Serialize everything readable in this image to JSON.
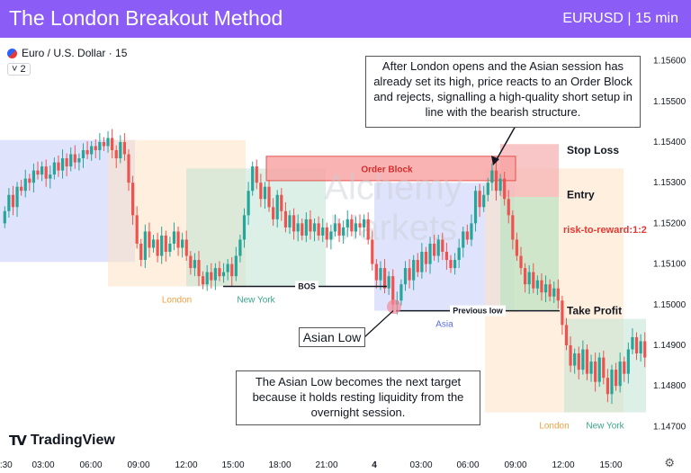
{
  "header": {
    "title": "The London Breakout Method",
    "symbol": "EURUSD | 15 min"
  },
  "legend": {
    "instrument": "Euro / U.S. Dollar · 15",
    "badge": "˅ 2"
  },
  "notes": {
    "top": "After London opens and the Asian session has already set its high, price reacts to an Order Block and rejects, signalling a high-quality short setup in line with the bearish structure.",
    "asian_low": "Asian Low",
    "bottom": "The Asian Low becomes the next target because it holds resting liquidity from the overnight session."
  },
  "branding": {
    "tradingview": "TradingView",
    "logo_mark": "TV",
    "watermark_line1": "Alchemy",
    "watermark_line2": "Markets"
  },
  "colors": {
    "header": "#8b5cf6",
    "bull": "#26a69a",
    "bear": "#ef5350",
    "asia": "#c5cdfa",
    "london": "#fde2c2",
    "newyork": "#bfe3d6",
    "order_block": "#f9a6a6"
  },
  "chart_data": {
    "type": "candlestick",
    "title": "The London Breakout Method",
    "instrument": "EURUSD",
    "timeframe": "15 min",
    "ylim": [
      1.1465,
      1.1563
    ],
    "y_ticks": [
      1.147,
      1.148,
      1.149,
      1.15,
      1.151,
      1.152,
      1.153,
      1.154,
      1.155,
      1.156
    ],
    "y_tick_labels": [
      "1.14700",
      "1.14800",
      "1.14900",
      "1.15000",
      "1.15100",
      "1.15200",
      "1.15300",
      "1.15400",
      "1.15500",
      "1.15600"
    ],
    "x_tick_labels": [
      "0:30",
      "03:00",
      "06:00",
      "09:00",
      "12:00",
      "15:00",
      "18:00",
      "21:00",
      "4",
      "03:00",
      "06:00",
      "09:00",
      "12:00",
      "15:00"
    ],
    "sessions": [
      {
        "name": "Asia",
        "label": "",
        "x0": 0,
        "x1": 27,
        "y0": 1.5111,
        "y1": 1.5141
      },
      {
        "name": "London",
        "label": "London",
        "x0": 27,
        "x1": 60,
        "y0": 1.5105,
        "y1": 1.5141
      },
      {
        "name": "New York",
        "label": "New York",
        "x0": 46,
        "x1": 78,
        "y0": 1.5105,
        "y1": 1.5131
      },
      {
        "name": "Asia",
        "label": "Asia",
        "x0": 90,
        "x1": 117,
        "y0": 1.1498,
        "y1": 1.153
      },
      {
        "name": "London",
        "label": "London",
        "x0": 117,
        "x1": 150,
        "y0": 1.1473,
        "y1": 1.1533
      },
      {
        "name": "New York",
        "label": "New York",
        "x0": 136,
        "x1": 156,
        "y0": 1.1473,
        "y1": 1.1497
      }
    ],
    "order_block": {
      "label": "Order Block",
      "x0": 64,
      "x1": 124,
      "top": 1.15345,
      "bottom": 1.15315
    },
    "bos": {
      "label": "BOS",
      "x0": 54,
      "x1": 89,
      "y": 1.15045
    },
    "previous_low": {
      "label": "Previous low",
      "x0": 94,
      "x1": 150,
      "y": 1.14985
    },
    "trade": {
      "stop_loss": {
        "label": "Stop Loss",
        "price": 1.1538
      },
      "entry": {
        "label": "Entry",
        "price": 1.1527
      },
      "take_profit": {
        "label": "Take Profit",
        "price": 1.14985
      },
      "risk_reward": "risk-to-reward:1:2",
      "x0": 121,
      "x1": 135
    },
    "asian_low_point": {
      "x": 95,
      "y": 1.1499
    },
    "close": [
      1.1523,
      1.1527,
      1.1524,
      1.1529,
      1.1528,
      1.1531,
      1.153,
      1.1533,
      1.1532,
      1.1534,
      1.1531,
      1.1532,
      1.1535,
      1.1533,
      1.1536,
      1.1534,
      1.1537,
      1.1535,
      1.1536,
      1.1538,
      1.1537,
      1.1539,
      1.1538,
      1.154,
      1.1539,
      1.1541,
      1.1538,
      1.1536,
      1.154,
      1.1537,
      1.153,
      1.1522,
      1.1515,
      1.1511,
      1.1518,
      1.1514,
      1.1516,
      1.1512,
      1.1517,
      1.1513,
      1.1515,
      1.1518,
      1.1514,
      1.1516,
      1.1512,
      1.1509,
      1.1511,
      1.1507,
      1.1505,
      1.1508,
      1.1506,
      1.1509,
      1.1507,
      1.1508,
      1.151,
      1.1507,
      1.1512,
      1.1516,
      1.1522,
      1.1528,
      1.1534,
      1.153,
      1.1526,
      1.1529,
      1.1524,
      1.1521,
      1.1527,
      1.1523,
      1.1519,
      1.1522,
      1.1518,
      1.152,
      1.1517,
      1.1521,
      1.1518,
      1.152,
      1.1517,
      1.1519,
      1.1516,
      1.1518,
      1.152,
      1.1517,
      1.1519,
      1.1521,
      1.1518,
      1.152,
      1.1519,
      1.1521,
      1.1516,
      1.151,
      1.1506,
      1.1509,
      1.1504,
      1.1507,
      1.15,
      1.1501,
      1.1505,
      1.1509,
      1.1506,
      1.1511,
      1.1508,
      1.1513,
      1.151,
      1.1515,
      1.1512,
      1.1516,
      1.1513,
      1.1511,
      1.1509,
      1.1511,
      1.1514,
      1.1518,
      1.1516,
      1.152,
      1.1528,
      1.1524,
      1.1527,
      1.153,
      1.1533,
      1.1528,
      1.1531,
      1.1526,
      1.1522,
      1.1516,
      1.1512,
      1.1509,
      1.1505,
      1.1508,
      1.1504,
      1.1506,
      1.1503,
      1.1505,
      1.1502,
      1.1504,
      1.1501,
      1.1495,
      1.149,
      1.1485,
      1.1488,
      1.1484,
      1.1489,
      1.1483,
      1.1486,
      1.1481,
      1.1487,
      1.1482,
      1.1478,
      1.1484,
      1.148,
      1.1486,
      1.1483,
      1.1489,
      1.1492,
      1.1488,
      1.1491,
      1.1487
    ]
  }
}
